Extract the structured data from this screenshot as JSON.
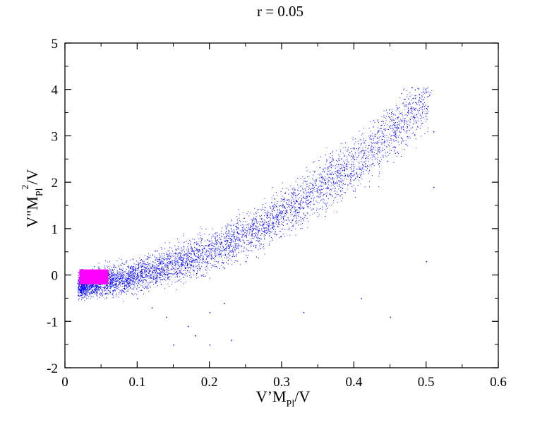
{
  "chart_data": {
    "type": "scatter",
    "title": "r = 0.05",
    "xlabel": {
      "main": "V’M",
      "sub": "Pl",
      "tail": "/V"
    },
    "ylabel": {
      "main": "V\"M",
      "sub": "Pl",
      "sup": "2",
      "tail": "/V"
    },
    "xlim": [
      0,
      0.6
    ],
    "ylim": [
      -2,
      5
    ],
    "x_ticks": [
      0,
      0.1,
      0.2,
      0.3,
      0.4,
      0.5,
      0.6
    ],
    "x_tick_labels": [
      "0",
      "0.1",
      "0.2",
      "0.3",
      "0.4",
      "0.5",
      "0.6"
    ],
    "y_ticks": [
      -2,
      -1,
      0,
      1,
      2,
      3,
      4,
      5
    ],
    "y_tick_labels": [
      "-2",
      "-1",
      "0",
      "1",
      "2",
      "3",
      "4",
      "5"
    ],
    "grid": false,
    "legend": "none",
    "series": [
      {
        "color": "#0000ff",
        "marker": "dot",
        "x_range": [
          0.02,
          0.52
        ],
        "y_range": [
          -1.5,
          4.05
        ],
        "points": [
          [
            0.021,
            -0.05
          ],
          [
            0.03,
            -0.02
          ],
          [
            0.04,
            -0.08
          ],
          [
            0.05,
            -0.12
          ],
          [
            0.06,
            0.0
          ],
          [
            0.07,
            -0.2
          ],
          [
            0.08,
            -0.35
          ],
          [
            0.09,
            0.15
          ],
          [
            0.1,
            -0.5
          ],
          [
            0.11,
            0.25
          ],
          [
            0.12,
            -0.7
          ],
          [
            0.13,
            0.35
          ],
          [
            0.14,
            -0.9
          ],
          [
            0.15,
            -1.5
          ],
          [
            0.16,
            0.4
          ],
          [
            0.17,
            -1.1
          ],
          [
            0.18,
            -1.3
          ],
          [
            0.19,
            0.55
          ],
          [
            0.2,
            -0.8
          ],
          [
            0.21,
            0.7
          ],
          [
            0.22,
            -0.6
          ],
          [
            0.23,
            -1.4
          ],
          [
            0.24,
            0.9
          ],
          [
            0.25,
            0.3
          ],
          [
            0.26,
            1.1
          ],
          [
            0.28,
            1.3
          ],
          [
            0.3,
            1.5
          ],
          [
            0.32,
            1.6
          ],
          [
            0.34,
            1.8
          ],
          [
            0.36,
            2.0
          ],
          [
            0.38,
            2.2
          ],
          [
            0.4,
            2.5
          ],
          [
            0.42,
            2.8
          ],
          [
            0.44,
            3.0
          ],
          [
            0.46,
            3.4
          ],
          [
            0.47,
            3.8
          ],
          [
            0.48,
            4.05
          ],
          [
            0.49,
            3.9
          ],
          [
            0.5,
            3.6
          ],
          [
            0.51,
            3.1
          ],
          [
            0.51,
            1.9
          ],
          [
            0.5,
            0.3
          ],
          [
            0.45,
            -0.9
          ],
          [
            0.41,
            -0.5
          ],
          [
            0.33,
            -0.8
          ],
          [
            0.2,
            -1.5
          ]
        ]
      },
      {
        "color": "#ff00ff",
        "marker": "square",
        "x_range": [
          0.02,
          0.06
        ],
        "y_range": [
          -0.2,
          0.12
        ]
      }
    ]
  }
}
